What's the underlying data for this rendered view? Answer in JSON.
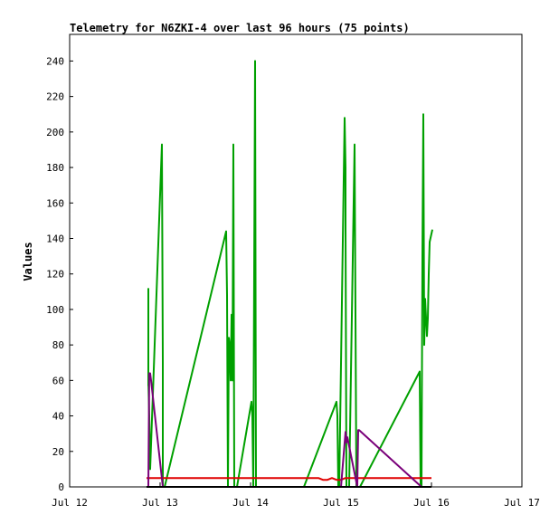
{
  "chart_data": {
    "type": "line",
    "title": "Telemetry for N6ZKI-4 over last 96 hours (75 points)",
    "xlabel": "",
    "ylabel": "Values",
    "xlim": [
      "Jul 12",
      "Jul 17"
    ],
    "x_ticks": [
      "Jul 12",
      "Jul 13",
      "Jul 14",
      "Jul 15",
      "Jul 16",
      "Jul 17"
    ],
    "ylim": [
      0,
      255
    ],
    "y_ticks": [
      0,
      20,
      40,
      60,
      80,
      100,
      120,
      140,
      160,
      180,
      200,
      220,
      240
    ],
    "grid": false,
    "series": [
      {
        "color": "#00a000",
        "x": [
          12.87,
          12.87,
          12.87,
          12.88,
          12.89,
          13.02,
          13.03,
          13.03,
          13.04,
          13.05,
          13.05,
          13.73,
          13.74,
          13.75,
          13.76,
          13.77,
          13.78,
          13.79,
          13.8,
          13.81,
          13.82,
          13.83,
          13.84,
          13.85,
          14.01,
          14.02,
          14.03,
          14.05,
          14.06,
          14.57,
          14.58,
          14.59,
          14.95,
          14.96,
          14.97,
          14.98,
          15.04,
          15.05,
          15.05,
          15.06,
          15.07,
          15.08,
          15.09,
          15.15,
          15.16,
          15.17,
          15.18,
          15.19,
          15.2,
          15.21,
          15.87,
          15.88,
          15.89,
          15.9,
          15.91,
          15.92,
          15.93,
          15.95,
          15.96,
          15.97,
          15.98,
          16.01
        ],
        "y": [
          112,
          57,
          60,
          40,
          10,
          193,
          70,
          0,
          0,
          0,
          0,
          144,
          108,
          0,
          84,
          80,
          60,
          97,
          60,
          193,
          0,
          0,
          0,
          0,
          48,
          40,
          0,
          240,
          0,
          0,
          0,
          0,
          48,
          40,
          0,
          0,
          208,
          180,
          146,
          0,
          0,
          0,
          0,
          193,
          97,
          0,
          0,
          0,
          0,
          0,
          65,
          0,
          0,
          130,
          210,
          80,
          106,
          85,
          95,
          120,
          138,
          145
        ]
      },
      {
        "color": "#e00000",
        "x": [
          12.85,
          13.5,
          14.0,
          14.5,
          14.75,
          14.8,
          14.85,
          14.9,
          14.95,
          15.0,
          15.05,
          15.5,
          16.0
        ],
        "y": [
          5,
          5,
          5,
          5,
          5,
          4,
          4,
          5,
          4,
          4,
          5,
          5,
          5
        ]
      },
      {
        "color": "#7a007a",
        "x": [
          12.86,
          12.87,
          12.88,
          12.89,
          12.9,
          13.03,
          13.04,
          13.05,
          15.0,
          15.05,
          15.06,
          15.07,
          15.18,
          15.19,
          15.2,
          15.89
        ],
        "y": [
          0,
          0,
          64,
          64,
          60,
          0,
          0,
          0,
          0,
          31,
          25,
          28,
          0,
          32,
          32,
          0
        ]
      },
      {
        "color": "#000000",
        "x": [
          12.85,
          13.05,
          14.0,
          15.0,
          15.95,
          16.0
        ],
        "y": [
          0,
          0,
          0,
          0,
          0,
          0
        ]
      }
    ]
  }
}
